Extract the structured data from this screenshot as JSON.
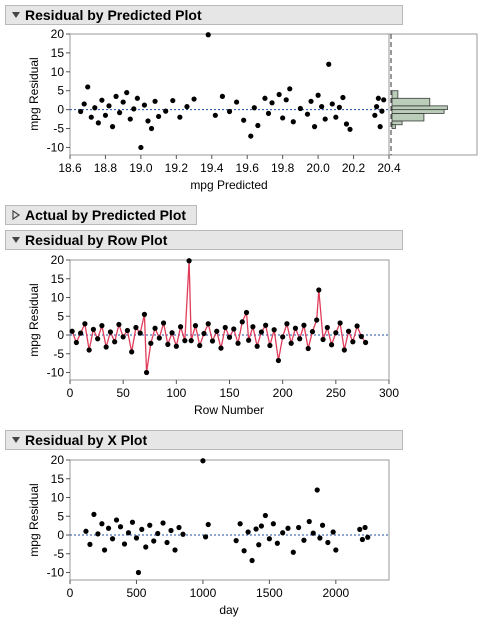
{
  "sections": {
    "residual_by_predicted": {
      "title": "Residual by Predicted Plot"
    },
    "actual_by_predicted": {
      "title": "Actual by Predicted Plot"
    },
    "residual_by_row": {
      "title": "Residual by Row Plot"
    },
    "residual_by_x": {
      "title": "Residual by X Plot"
    }
  },
  "colors": {
    "points": "#000000",
    "row_line": "#e03c5a",
    "zero_line": "#1f4fa3",
    "hist_fill": "#b9cdb9",
    "hist_stroke": "#3a3a3a"
  },
  "chart_data": [
    {
      "id": "rp",
      "type": "scatter",
      "xlabel": "mpg Predicted",
      "ylabel": "mpg Residual",
      "xlim": [
        18.6,
        20.4
      ],
      "ylim": [
        -12,
        20
      ],
      "xticks": [
        "18.6",
        "18.8",
        "19.0",
        "19.2",
        "19.4",
        "19.6",
        "19.8",
        "20.0",
        "20.2",
        "20.4"
      ],
      "yticks": [
        "20",
        "15",
        "10",
        "5",
        "0",
        "-5",
        "-10"
      ],
      "reference_line": 0,
      "histogram": {
        "bins": [
          [
            -4,
            -3,
            0.12
          ],
          [
            -3,
            -1,
            0.38
          ],
          [
            -1,
            0,
            0.62
          ],
          [
            0,
            1,
            0.66
          ],
          [
            1,
            3,
            0.45
          ],
          [
            3,
            5,
            0.07
          ],
          [
            -5,
            -4,
            0.04
          ]
        ]
      },
      "points": [
        [
          18.66,
          -0.5
        ],
        [
          18.68,
          1.5
        ],
        [
          18.7,
          6.0
        ],
        [
          18.72,
          -2.0
        ],
        [
          18.74,
          0.5
        ],
        [
          18.76,
          -3.5
        ],
        [
          18.78,
          2.5
        ],
        [
          18.8,
          -1.5
        ],
        [
          18.82,
          1.0
        ],
        [
          18.84,
          -4.5
        ],
        [
          18.86,
          3.5
        ],
        [
          18.88,
          -0.8
        ],
        [
          18.9,
          2.0
        ],
        [
          18.92,
          4.5
        ],
        [
          18.94,
          -2.5
        ],
        [
          18.96,
          0.2
        ],
        [
          18.98,
          3.0
        ],
        [
          19.0,
          -10.0
        ],
        [
          19.02,
          1.2
        ],
        [
          19.04,
          -3.0
        ],
        [
          19.06,
          -5.0
        ],
        [
          19.08,
          2.2
        ],
        [
          19.1,
          -1.8
        ],
        [
          19.14,
          -0.4
        ],
        [
          19.18,
          2.4
        ],
        [
          19.22,
          -2.0
        ],
        [
          19.26,
          0.8
        ],
        [
          19.3,
          2.8
        ],
        [
          19.38,
          19.8
        ],
        [
          19.42,
          -1.5
        ],
        [
          19.46,
          3.5
        ],
        [
          19.5,
          -0.5
        ],
        [
          19.54,
          2.0
        ],
        [
          19.58,
          -2.8
        ],
        [
          19.62,
          -7.0
        ],
        [
          19.64,
          0.5
        ],
        [
          19.66,
          -4.2
        ],
        [
          19.7,
          3.0
        ],
        [
          19.72,
          -1.0
        ],
        [
          19.74,
          1.8
        ],
        [
          19.78,
          4.0
        ],
        [
          19.8,
          -2.2
        ],
        [
          19.82,
          2.6
        ],
        [
          19.84,
          5.5
        ],
        [
          19.86,
          -3.2
        ],
        [
          19.9,
          0.3
        ],
        [
          19.94,
          -1.2
        ],
        [
          19.96,
          2.2
        ],
        [
          19.98,
          -4.5
        ],
        [
          20.0,
          3.8
        ],
        [
          20.02,
          0.8
        ],
        [
          20.04,
          -2.5
        ],
        [
          20.06,
          12.0
        ],
        [
          20.08,
          1.5
        ],
        [
          20.1,
          -2.0
        ],
        [
          20.12,
          0.6
        ],
        [
          20.14,
          3.2
        ],
        [
          20.16,
          -3.8
        ],
        [
          20.18,
          -5.2
        ],
        [
          20.32,
          -1.5
        ],
        [
          20.33,
          0.8
        ],
        [
          20.34,
          3.0
        ],
        [
          20.35,
          -4.5
        ],
        [
          20.36,
          -0.4
        ],
        [
          20.37,
          2.6
        ]
      ]
    },
    {
      "id": "row",
      "type": "line",
      "xlabel": "Row Number",
      "ylabel": "mpg Residual",
      "xlim": [
        0,
        300
      ],
      "ylim": [
        -12,
        20
      ],
      "xticks": [
        "0",
        "50",
        "100",
        "150",
        "200",
        "250",
        "300"
      ],
      "yticks": [
        "20",
        "15",
        "10",
        "5",
        "0",
        "-5",
        "-10"
      ],
      "reference_line": 0,
      "points": [
        [
          2,
          1.0
        ],
        [
          6,
          -2.0
        ],
        [
          10,
          0.5
        ],
        [
          14,
          3.0
        ],
        [
          18,
          -4.0
        ],
        [
          22,
          1.5
        ],
        [
          26,
          -1.0
        ],
        [
          30,
          2.5
        ],
        [
          34,
          -3.2
        ],
        [
          38,
          0.8
        ],
        [
          42,
          -1.8
        ],
        [
          46,
          2.8
        ],
        [
          50,
          -0.5
        ],
        [
          54,
          1.2
        ],
        [
          58,
          -4.5
        ],
        [
          62,
          2.0
        ],
        [
          66,
          0.5
        ],
        [
          70,
          5.5
        ],
        [
          72,
          -10.0
        ],
        [
          76,
          -2.2
        ],
        [
          80,
          1.8
        ],
        [
          84,
          -0.8
        ],
        [
          88,
          3.2
        ],
        [
          92,
          -2.5
        ],
        [
          96,
          0.6
        ],
        [
          100,
          -3.0
        ],
        [
          104,
          2.2
        ],
        [
          108,
          -1.5
        ],
        [
          112,
          19.8
        ],
        [
          114,
          -1.5
        ],
        [
          118,
          2.5
        ],
        [
          122,
          -2.8
        ],
        [
          126,
          0.4
        ],
        [
          130,
          3.0
        ],
        [
          134,
          -1.6
        ],
        [
          138,
          1.0
        ],
        [
          142,
          -3.5
        ],
        [
          146,
          2.0
        ],
        [
          150,
          -0.6
        ],
        [
          154,
          1.6
        ],
        [
          158,
          -2.2
        ],
        [
          162,
          3.5
        ],
        [
          166,
          6.0
        ],
        [
          168,
          -1.4
        ],
        [
          172,
          2.2
        ],
        [
          176,
          -3.0
        ],
        [
          180,
          0.8
        ],
        [
          184,
          2.6
        ],
        [
          188,
          -2.8
        ],
        [
          192,
          1.4
        ],
        [
          196,
          -6.8
        ],
        [
          200,
          -0.5
        ],
        [
          204,
          3.0
        ],
        [
          208,
          -2.2
        ],
        [
          212,
          1.8
        ],
        [
          216,
          -1.0
        ],
        [
          220,
          2.6
        ],
        [
          224,
          -3.6
        ],
        [
          228,
          0.9
        ],
        [
          232,
          4.0
        ],
        [
          234,
          12.0
        ],
        [
          238,
          -1.2
        ],
        [
          242,
          2.0
        ],
        [
          246,
          -2.6
        ],
        [
          250,
          0.6
        ],
        [
          254,
          3.2
        ],
        [
          258,
          -4.0
        ],
        [
          262,
          1.0
        ],
        [
          266,
          -1.8
        ],
        [
          270,
          2.4
        ],
        [
          274,
          -0.4
        ],
        [
          278,
          -2.0
        ]
      ]
    },
    {
      "id": "x",
      "type": "scatter",
      "xlabel": "day",
      "ylabel": "mpg Residual",
      "xlim": [
        0,
        2400
      ],
      "ylim": [
        -12,
        20
      ],
      "xticks": [
        "0",
        "500",
        "1000",
        "1500",
        "2000"
      ],
      "yticks": [
        "20",
        "15",
        "10",
        "5",
        "0",
        "-5",
        "-10"
      ],
      "reference_line": 0,
      "points": [
        [
          120,
          1.0
        ],
        [
          150,
          -2.5
        ],
        [
          180,
          5.5
        ],
        [
          210,
          0.3
        ],
        [
          240,
          3.0
        ],
        [
          260,
          -4.0
        ],
        [
          290,
          1.8
        ],
        [
          320,
          -1.0
        ],
        [
          350,
          4.0
        ],
        [
          380,
          2.2
        ],
        [
          410,
          -2.4
        ],
        [
          440,
          0.6
        ],
        [
          470,
          3.4
        ],
        [
          500,
          -0.8
        ],
        [
          515,
          -10.0
        ],
        [
          540,
          1.5
        ],
        [
          570,
          -3.2
        ],
        [
          600,
          2.6
        ],
        [
          630,
          -1.6
        ],
        [
          660,
          0.4
        ],
        [
          700,
          3.2
        ],
        [
          730,
          -2.0
        ],
        [
          760,
          1.2
        ],
        [
          790,
          -4.0
        ],
        [
          820,
          2.0
        ],
        [
          850,
          0.2
        ],
        [
          1000,
          19.8
        ],
        [
          1020,
          -0.5
        ],
        [
          1040,
          2.8
        ],
        [
          1250,
          -1.5
        ],
        [
          1280,
          3.0
        ],
        [
          1310,
          -4.2
        ],
        [
          1340,
          0.8
        ],
        [
          1370,
          -6.8
        ],
        [
          1400,
          1.6
        ],
        [
          1420,
          -2.6
        ],
        [
          1440,
          2.4
        ],
        [
          1470,
          5.2
        ],
        [
          1500,
          -1.0
        ],
        [
          1530,
          3.0
        ],
        [
          1560,
          -2.2
        ],
        [
          1600,
          0.6
        ],
        [
          1640,
          1.8
        ],
        [
          1680,
          -4.6
        ],
        [
          1720,
          2.0
        ],
        [
          1760,
          -1.4
        ],
        [
          1800,
          3.6
        ],
        [
          1830,
          0.5
        ],
        [
          1860,
          12.0
        ],
        [
          1880,
          -0.8
        ],
        [
          1900,
          2.6
        ],
        [
          1940,
          -2.0
        ],
        [
          1980,
          0.8
        ],
        [
          2000,
          -4.0
        ],
        [
          2180,
          1.5
        ],
        [
          2200,
          -1.2
        ],
        [
          2220,
          2.0
        ],
        [
          2240,
          -0.6
        ]
      ]
    }
  ]
}
